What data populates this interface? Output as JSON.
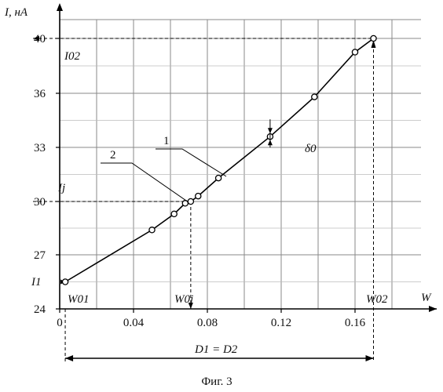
{
  "chart_data": {
    "type": "line",
    "ylabel": "I, нА",
    "xlabel": "W",
    "caption": "Фиг. 3",
    "xlim": [
      0,
      0.2
    ],
    "ylim": [
      24,
      41
    ],
    "x_ticks": [
      "0",
      "0.04",
      "0.08",
      "0.12",
      "0.16"
    ],
    "x_tick_values": [
      0,
      0.04,
      0.08,
      0.12,
      0.16
    ],
    "y_ticks": [
      "24",
      "27",
      "30",
      "33",
      "36",
      "40"
    ],
    "y_tick_values": [
      24,
      27,
      30,
      33,
      36,
      40
    ],
    "grid": true,
    "series": [
      {
        "x": [
          0.003,
          0.05,
          0.062,
          0.068,
          0.071,
          0.075,
          0.086,
          0.114,
          0.138,
          0.16,
          0.17
        ],
        "y": [
          25.5,
          28.4,
          29.3,
          29.9,
          30.0,
          30.3,
          31.3,
          33.6,
          35.8,
          39.0,
          40.0
        ]
      }
    ],
    "annotations": {
      "I02": "I02",
      "Ij": "Ij",
      "I1": "I1",
      "W01": "W01",
      "W0j": "W0j",
      "W02": "W02",
      "delta0": "δ0",
      "label1": "1",
      "label2": "2",
      "range": "D1 = D2"
    },
    "marked_points": {
      "I02": 40.0,
      "Ij": 30.0,
      "I1": 25.5,
      "W01": 0.003,
      "W0j": 0.071,
      "W02": 0.17,
      "delta0_x": 0.114,
      "delta0_y": 33.6
    }
  }
}
